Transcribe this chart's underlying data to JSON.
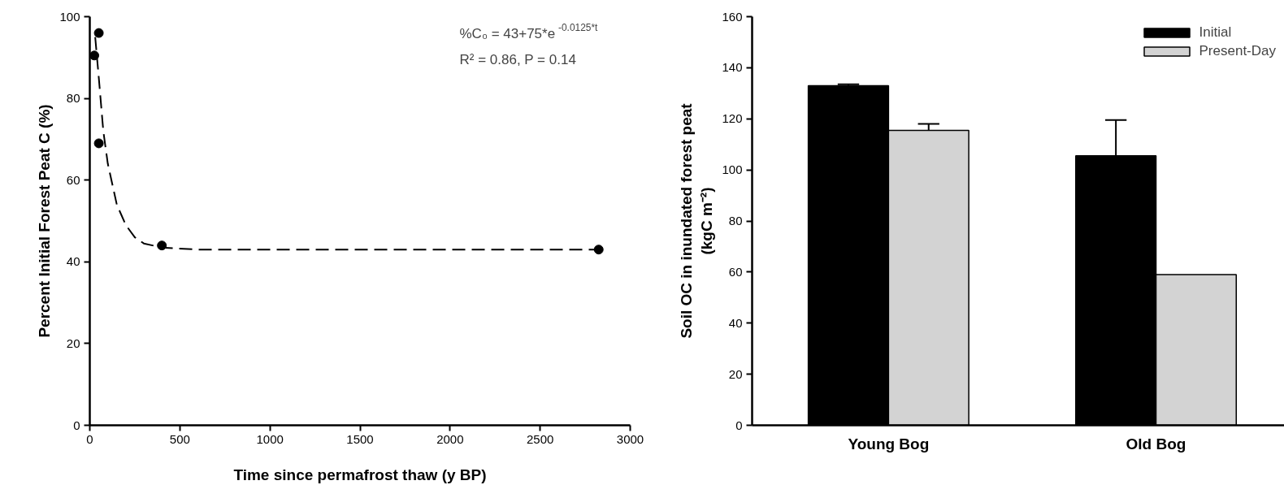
{
  "chart_data": [
    {
      "type": "scatter",
      "xlabel": "Time since permafrost thaw (y BP)",
      "ylabel": "Percent Initial Forest Peat C (%)",
      "xlim": [
        0,
        3000
      ],
      "xticks": [
        0,
        500,
        1000,
        1500,
        2000,
        2500,
        3000
      ],
      "ylim": [
        0,
        100
      ],
      "yticks": [
        0,
        20,
        40,
        60,
        80,
        100
      ],
      "grid": false,
      "series": [
        {
          "type": "scatter",
          "color": "#000000",
          "marker": "circle",
          "x": [
            25,
            50,
            50,
            400,
            2825
          ],
          "values": [
            90.5,
            96,
            69,
            44,
            43
          ]
        },
        {
          "type": "line",
          "color": "#000000",
          "line_style": "dashed",
          "x": [
            30,
            50,
            75,
            100,
            150,
            200,
            250,
            300,
            400,
            600,
            1000,
            2825
          ],
          "values": [
            95,
            85,
            72,
            64,
            54,
            49,
            46,
            44.5,
            43.5,
            43,
            43,
            43
          ]
        }
      ],
      "annotations": [
        "%C₀ = 43+75*e$^{-0.0125*t}$",
        "R² = 0.86, P = 0.14"
      ]
    },
    {
      "type": "bar",
      "ylabel": "Soil OC in inundated forest peat\n(kgC m⁻²)",
      "categories": [
        "Young Bog",
        "Old Bog"
      ],
      "ylim": [
        0,
        160
      ],
      "yticks": [
        0,
        20,
        40,
        60,
        80,
        100,
        120,
        140,
        160
      ],
      "grid": false,
      "legend": "top right",
      "series": [
        {
          "name": "Initial",
          "color": "#000000",
          "values": [
            133,
            105.5
          ],
          "errors": [
            [
              133,
              133.5
            ],
            [
              105.5,
              119.5
            ]
          ]
        },
        {
          "name": "Present-Day",
          "color": "#d3d3d3",
          "values": [
            115.5,
            59
          ],
          "errors": [
            [
              115.5,
              118
            ],
            null
          ]
        }
      ]
    }
  ]
}
